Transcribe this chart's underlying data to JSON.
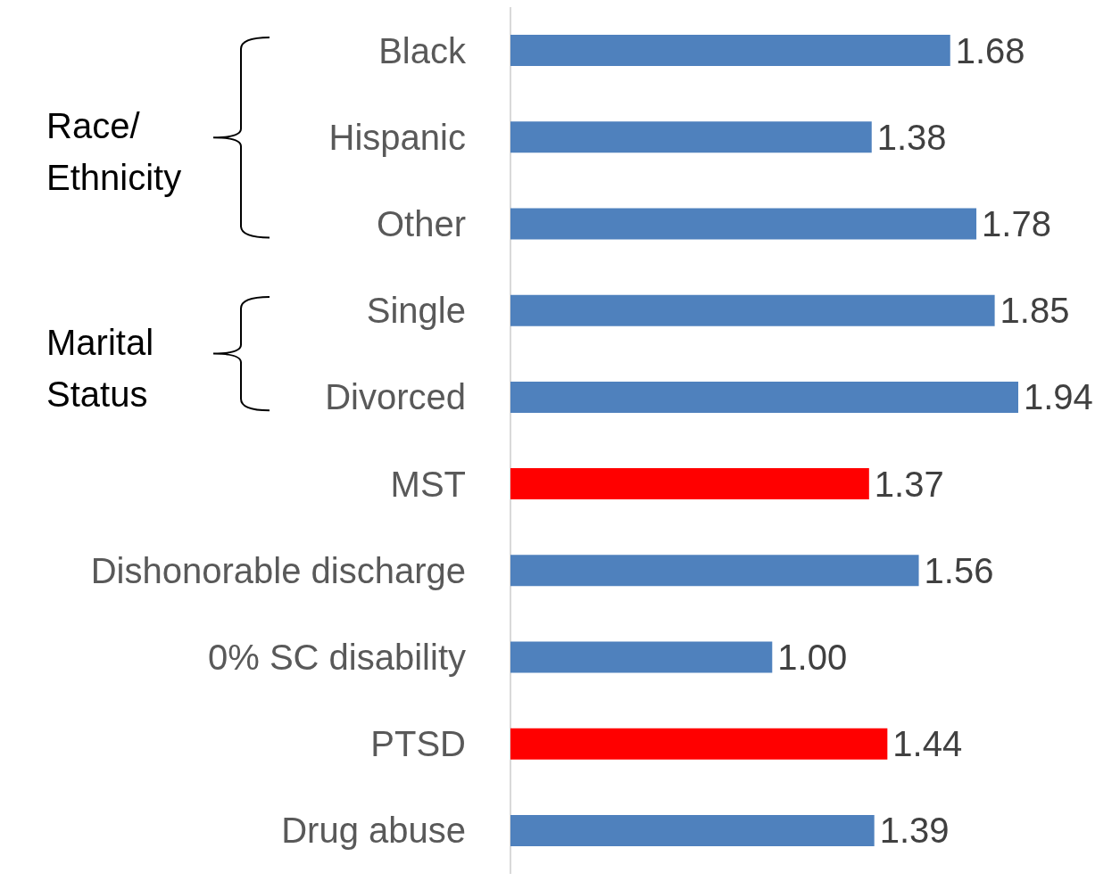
{
  "chart_data": {
    "type": "bar",
    "orientation": "horizontal",
    "categories": [
      "Black",
      "Hispanic",
      "Other",
      "Single",
      "Divorced",
      "MST",
      "Dishonorable discharge",
      "0% SC disability",
      "PTSD",
      "Drug abuse"
    ],
    "values": [
      1.68,
      1.38,
      1.78,
      1.85,
      1.94,
      1.37,
      1.56,
      1.0,
      1.44,
      1.39
    ],
    "value_labels": [
      "1.68",
      "1.38",
      "1.78",
      "1.85",
      "1.94",
      "1.37",
      "1.56",
      "1.00",
      "1.44",
      "1.39"
    ],
    "colors": [
      "#4f81bd",
      "#4f81bd",
      "#4f81bd",
      "#4f81bd",
      "#4f81bd",
      "#ff0000",
      "#4f81bd",
      "#4f81bd",
      "#ff0000",
      "#4f81bd"
    ],
    "annotations": [
      "Race/ Ethnicity",
      "Marital Status"
    ]
  }
}
